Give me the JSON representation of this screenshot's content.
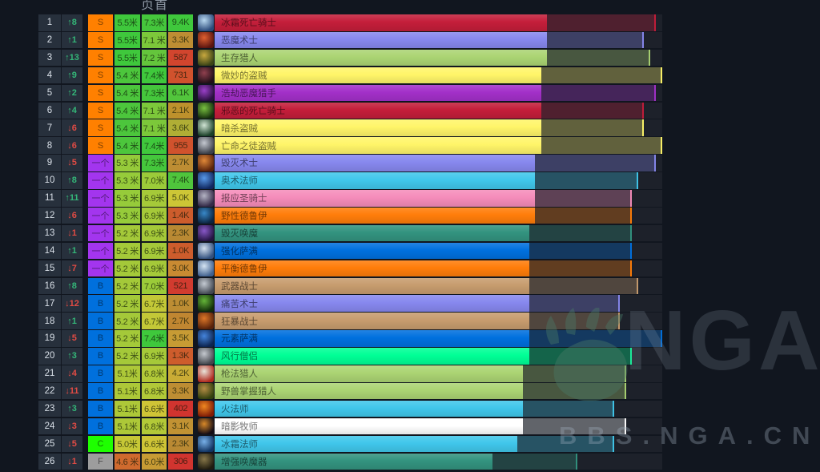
{
  "header": {
    "label": "页首"
  },
  "watermark": {
    "logo": "NGA",
    "site": "BBS.NGA.CN"
  },
  "tier_colors": {
    "S": "#ff8000",
    "一个": "#a335ee",
    "B": "#0070dd",
    "C": "#1eff00",
    "F": "#9d9d9d"
  },
  "change_colors": {
    "up": "#34b678",
    "down": "#e14b44"
  },
  "chart_data": {
    "type": "bar",
    "title": "",
    "note": "DPS tier ranking list; bright bar = first value (米 = million), dim bar extension ends at second value, third column = parse count",
    "x_max_million": 7.4,
    "categories": [
      "冰霜死亡骑士",
      "恶魔术士",
      "生存猎人",
      "微妙的盗贼",
      "浩劫恶魔猎手",
      "邪恶的死亡骑士",
      "暗杀盗贼",
      "亡命之徒盗贼",
      "毁灭术士",
      "奥术法师",
      "报应圣骑士",
      "野性德鲁伊",
      "毁灭唤魔",
      "强化萨满",
      "平衡德鲁伊",
      "武器战士",
      "痛苦术士",
      "狂暴战士",
      "元素萨满",
      "风行僧侣",
      "枪法猎人",
      "野兽掌握猎人",
      "火法师",
      "暗影牧师",
      "冰霜法师",
      "增强唤魔器"
    ],
    "series": [
      {
        "name": "avg_dps_million",
        "values": [
          5.5,
          5.5,
          5.5,
          5.4,
          5.4,
          5.4,
          5.4,
          5.4,
          5.3,
          5.3,
          5.3,
          5.3,
          5.2,
          5.2,
          5.2,
          5.2,
          5.2,
          5.2,
          5.2,
          5.2,
          5.1,
          5.1,
          5.1,
          5.1,
          5.0,
          4.6
        ]
      },
      {
        "name": "max_dps_million",
        "values": [
          7.3,
          7.1,
          7.2,
          7.4,
          7.3,
          7.1,
          7.1,
          7.4,
          7.3,
          7.0,
          6.9,
          6.9,
          6.9,
          6.9,
          6.9,
          7.0,
          6.7,
          6.7,
          7.4,
          6.9,
          6.8,
          6.8,
          6.6,
          6.8,
          6.6,
          6.0
        ]
      }
    ]
  },
  "rows": [
    {
      "rank": "1",
      "change": "↑8",
      "dir": "up",
      "tier": "S",
      "v1": "5.5米",
      "v2": "7.3米",
      "v3": "9.4K",
      "n1": 5.5,
      "n2": 7.3,
      "c1": "#3fc83c",
      "c2": "#45c73c",
      "c3": "#3fc83c",
      "name": "冰霜死亡骑士",
      "color": "#C41E3A",
      "icon": "frost-death-knight-icon",
      "ic": [
        "#b8d8f0",
        "#2a4a7a"
      ]
    },
    {
      "rank": "2",
      "change": "↑1",
      "dir": "up",
      "tier": "S",
      "v1": "5.5米",
      "v2": "7.1 米",
      "v3": "3.3K",
      "n1": 5.5,
      "n2": 7.1,
      "c1": "#3fc83c",
      "c2": "#7cc83a",
      "c3": "#bd8d33",
      "name": "恶魔术士",
      "color": "#8788EE",
      "icon": "demonology-warlock-icon",
      "ic": [
        "#e06030",
        "#5a1410"
      ]
    },
    {
      "rank": "3",
      "change": "↑13",
      "dir": "up",
      "tier": "S",
      "v1": "5.5米",
      "v2": "7.2 米",
      "v3": "587",
      "n1": 5.5,
      "n2": 7.2,
      "c1": "#3fc83c",
      "c2": "#64c53c",
      "c3": "#d2452e",
      "name": "生存猎人",
      "color": "#ABD473",
      "icon": "survival-hunter-icon",
      "ic": [
        "#c8a83e",
        "#3a4416"
      ]
    },
    {
      "rank": "4",
      "change": "↑9",
      "dir": "up",
      "tier": "S",
      "v1": "5.4 米",
      "v2": "7.4米",
      "v3": "731",
      "n1": 5.4,
      "n2": 7.4,
      "c1": "#4cc63c",
      "c2": "#3fc83c",
      "c3": "#d0522d",
      "name": "微妙的盗贼",
      "color": "#FFF569",
      "icon": "subtlety-rogue-icon",
      "ic": [
        "#90404e",
        "#221018"
      ]
    },
    {
      "rank": "5",
      "change": "↑2",
      "dir": "up",
      "tier": "S",
      "v1": "5.4 米",
      "v2": "7.3米",
      "v3": "6.1K",
      "n1": 5.4,
      "n2": 7.3,
      "c1": "#4cc63c",
      "c2": "#45c73c",
      "c3": "#52c53c",
      "name": "浩劫恶魔猎手",
      "color": "#A330C9",
      "icon": "havoc-demon-hunter-icon",
      "ic": [
        "#9a40c8",
        "#2a1040"
      ]
    },
    {
      "rank": "6",
      "change": "↑4",
      "dir": "up",
      "tier": "S",
      "v1": "5.4 米",
      "v2": "7.1 米",
      "v3": "2.1K",
      "n1": 5.4,
      "n2": 7.1,
      "c1": "#4cc63c",
      "c2": "#7cc83a",
      "c3": "#bd912c",
      "name": "邪恶的死亡骑士",
      "color": "#C41E3A",
      "icon": "unholy-death-knight-icon",
      "ic": [
        "#78c040",
        "#16300e"
      ]
    },
    {
      "rank": "7",
      "change": "↓6",
      "dir": "down",
      "tier": "S",
      "v1": "5.4 米",
      "v2": "7.1 米",
      "v3": "3.6K",
      "n1": 5.4,
      "n2": 7.1,
      "c1": "#4cc63c",
      "c2": "#7cc83a",
      "c3": "#b0ae35",
      "name": "暗杀盗贼",
      "color": "#FFF569",
      "icon": "assassination-rogue-icon",
      "ic": [
        "#d0e4d4",
        "#1a4028"
      ]
    },
    {
      "rank": "8",
      "change": "↓6",
      "dir": "down",
      "tier": "S",
      "v1": "5.4 米",
      "v2": "7.4米",
      "v3": "955",
      "n1": 5.4,
      "n2": 7.4,
      "c1": "#4cc63c",
      "c2": "#3fc83c",
      "c3": "#d0522d",
      "name": "亡命之徒盗贼",
      "color": "#FFF569",
      "icon": "outlaw-rogue-icon",
      "ic": [
        "#c4c8d0",
        "#3c404a"
      ]
    },
    {
      "rank": "9",
      "change": "↓5",
      "dir": "down",
      "tier": "一个",
      "v1": "5.3 米",
      "v2": "7.3米",
      "v3": "2.7K",
      "n1": 5.3,
      "n2": 7.3,
      "c1": "#96cb3a",
      "c2": "#45c73c",
      "c3": "#bd8d33",
      "name": "毁灭术士",
      "color": "#8788EE",
      "icon": "destruction-warlock-icon",
      "ic": [
        "#e08838",
        "#58220c"
      ]
    },
    {
      "rank": "10",
      "change": "↑8",
      "dir": "up",
      "tier": "一个",
      "v1": "5.3 米",
      "v2": "7.0米",
      "v3": "7.4K",
      "n1": 5.3,
      "n2": 7.0,
      "c1": "#96cb3a",
      "c2": "#9bcb39",
      "c3": "#4fc53c",
      "name": "奥术法师",
      "color": "#40C7EB",
      "icon": "arcane-mage-icon",
      "ic": [
        "#5898e8",
        "#102860"
      ]
    },
    {
      "rank": "11",
      "change": "↑11",
      "dir": "up",
      "tier": "一个",
      "v1": "5.3 米",
      "v2": "6.9米",
      "v3": "5.0K",
      "n1": 5.3,
      "n2": 6.9,
      "c1": "#96cb3a",
      "c2": "#a5c939",
      "c3": "#cdc636",
      "name": "报应圣骑士",
      "color": "#F58CBA",
      "icon": "retribution-paladin-icon",
      "ic": [
        "#b4b4c4",
        "#342a48"
      ]
    },
    {
      "rank": "12",
      "change": "↓6",
      "dir": "down",
      "tier": "一个",
      "v1": "5.3 米",
      "v2": "6.9米",
      "v3": "1.4K",
      "n1": 5.3,
      "n2": 6.9,
      "c1": "#96cb3a",
      "c2": "#a5c939",
      "c3": "#cd5c2c",
      "name": "野性德鲁伊",
      "color": "#FF7D0A",
      "icon": "feral-druid-icon",
      "ic": [
        "#3888c8",
        "#0c2440"
      ]
    },
    {
      "rank": "13",
      "change": "↓1",
      "dir": "down",
      "tier": "一个",
      "v1": "5.2 米",
      "v2": "6.9米",
      "v3": "2.3K",
      "n1": 5.2,
      "n2": 6.9,
      "c1": "#a4c939",
      "c2": "#a5c939",
      "c3": "#b98933",
      "name": "毁灭唤魔",
      "color": "#33937F",
      "icon": "devastation-evoker-icon",
      "ic": [
        "#8858c8",
        "#241442"
      ]
    },
    {
      "rank": "14",
      "change": "↑1",
      "dir": "up",
      "tier": "一个",
      "v1": "5.2 米",
      "v2": "6.9米",
      "v3": "1.0K",
      "n1": 5.2,
      "n2": 6.9,
      "c1": "#a4c939",
      "c2": "#a5c939",
      "c3": "#cd5c2c",
      "name": "强化萨满",
      "color": "#0070DE",
      "icon": "enhancement-shaman-icon",
      "ic": [
        "#d4e0ee",
        "#32507e"
      ]
    },
    {
      "rank": "15",
      "change": "↓7",
      "dir": "down",
      "tier": "一个",
      "v1": "5.2 米",
      "v2": "6.9米",
      "v3": "3.0K",
      "n1": 5.2,
      "n2": 6.9,
      "c1": "#a4c939",
      "c2": "#a5c939",
      "c3": "#c98a32",
      "name": "平衡德鲁伊",
      "color": "#FF7D0A",
      "icon": "balance-druid-icon",
      "ic": [
        "#d4e4f2",
        "#40608e"
      ]
    },
    {
      "rank": "16",
      "change": "↑8",
      "dir": "up",
      "tier": "B",
      "v1": "5.2 米",
      "v2": "7.0米",
      "v3": "521",
      "n1": 5.2,
      "n2": 7.0,
      "c1": "#a4c939",
      "c2": "#9bcb39",
      "c3": "#d13b2f",
      "name": "武器战士",
      "color": "#C79C6E",
      "icon": "arms-warrior-icon",
      "ic": [
        "#c4cad2",
        "#424852"
      ]
    },
    {
      "rank": "17",
      "change": "↓12",
      "dir": "down",
      "tier": "B",
      "v1": "5.2 米",
      "v2": "6.7米",
      "v3": "1.0K",
      "n1": 5.2,
      "n2": 6.7,
      "c1": "#a4c939",
      "c2": "#c3c837",
      "c3": "#bd8d33",
      "name": "痛苦术士",
      "color": "#8788EE",
      "icon": "affliction-warlock-icon",
      "ic": [
        "#64b438",
        "#122e0a"
      ]
    },
    {
      "rank": "18",
      "change": "↑1",
      "dir": "up",
      "tier": "B",
      "v1": "5.2 米",
      "v2": "6.7米",
      "v3": "2.7K",
      "n1": 5.2,
      "n2": 6.7,
      "c1": "#a4c939",
      "c2": "#c3c837",
      "c3": "#c08631",
      "name": "狂暴战士",
      "color": "#C79C6E",
      "icon": "fury-warrior-icon",
      "ic": [
        "#dc7628",
        "#58220a"
      ]
    },
    {
      "rank": "19",
      "change": "↓5",
      "dir": "down",
      "tier": "B",
      "v1": "5.2 米",
      "v2": "7.4米",
      "v3": "3.5K",
      "n1": 5.2,
      "n2": 7.4,
      "c1": "#a4c939",
      "c2": "#3fc83c",
      "c3": "#c79b34",
      "name": "元素萨满",
      "color": "#0070DE",
      "icon": "elemental-shaman-icon",
      "ic": [
        "#4484dc",
        "#0c2450"
      ]
    },
    {
      "rank": "20",
      "change": "↑3",
      "dir": "up",
      "tier": "B",
      "v1": "5.2 米",
      "v2": "6.9米",
      "v3": "1.3K",
      "n1": 5.2,
      "n2": 6.9,
      "c1": "#a4c939",
      "c2": "#a5c939",
      "c3": "#cd5c2c",
      "name": "风行僧侣",
      "color": "#00FF96",
      "icon": "windwalker-monk-icon",
      "ic": [
        "#c4c8ce",
        "#42464c"
      ]
    },
    {
      "rank": "21",
      "change": "↓4",
      "dir": "down",
      "tier": "B",
      "v1": "5.1米",
      "v2": "6.8米",
      "v3": "4.2K",
      "n1": 5.1,
      "n2": 6.8,
      "c1": "#adc838",
      "c2": "#b2c938",
      "c3": "#c9ab35",
      "name": "枪法猎人",
      "color": "#ABD473",
      "icon": "marksmanship-hunter-icon",
      "ic": [
        "#e8e4da",
        "#b02a1e"
      ]
    },
    {
      "rank": "22",
      "change": "↓11",
      "dir": "down",
      "tier": "B",
      "v1": "5.1米",
      "v2": "6.8米",
      "v3": "3.3K",
      "n1": 5.1,
      "n2": 6.8,
      "c1": "#adc838",
      "c2": "#b2c938",
      "c3": "#bd8d33",
      "name": "野兽掌握猎人",
      "color": "#ABD473",
      "icon": "beast-mastery-hunter-icon",
      "ic": [
        "#b48c44",
        "#32400e"
      ]
    },
    {
      "rank": "23",
      "change": "↑3",
      "dir": "up",
      "tier": "B",
      "v1": "5.1米",
      "v2": "6.6米",
      "v3": "402",
      "n1": 5.1,
      "n2": 6.6,
      "c1": "#adc838",
      "c2": "#cfc436",
      "c3": "#d1342f",
      "name": "火法师",
      "color": "#40C7EB",
      "icon": "fire-mage-icon",
      "ic": [
        "#f08820",
        "#801c06"
      ]
    },
    {
      "rank": "24",
      "change": "↓3",
      "dir": "down",
      "tier": "B",
      "v1": "5.1米",
      "v2": "6.8米",
      "v3": "3.1K",
      "n1": 5.1,
      "n2": 6.8,
      "c1": "#adc838",
      "c2": "#b2c938",
      "c3": "#c19233",
      "name": "暗影牧师",
      "color": "#FFFFFF",
      "icon": "shadow-priest-icon",
      "ic": [
        "#d88828",
        "#140c14"
      ]
    },
    {
      "rank": "25",
      "change": "↓5",
      "dir": "down",
      "tier": "C",
      "v1": "5.0米",
      "v2": "6.6米",
      "v3": "2.3K",
      "n1": 5.0,
      "n2": 6.6,
      "c1": "#c6c736",
      "c2": "#cfc436",
      "c3": "#b98933",
      "name": "冰霜法师",
      "color": "#40C7EB",
      "icon": "frost-mage-icon",
      "ic": [
        "#78b0e8",
        "#123462"
      ]
    },
    {
      "rank": "26",
      "change": "↓1",
      "dir": "down",
      "tier": "F",
      "v1": "4.6 米",
      "v2": "6.0米",
      "v3": "306",
      "n1": 4.6,
      "n2": 6.0,
      "c1": "#cf6a2e",
      "c2": "#c79b34",
      "c3": "#d1342f",
      "name": "增强唤魔器",
      "color": "#33937F",
      "icon": "augmentation-evoker-icon",
      "ic": [
        "#867648",
        "#201c10"
      ]
    }
  ]
}
